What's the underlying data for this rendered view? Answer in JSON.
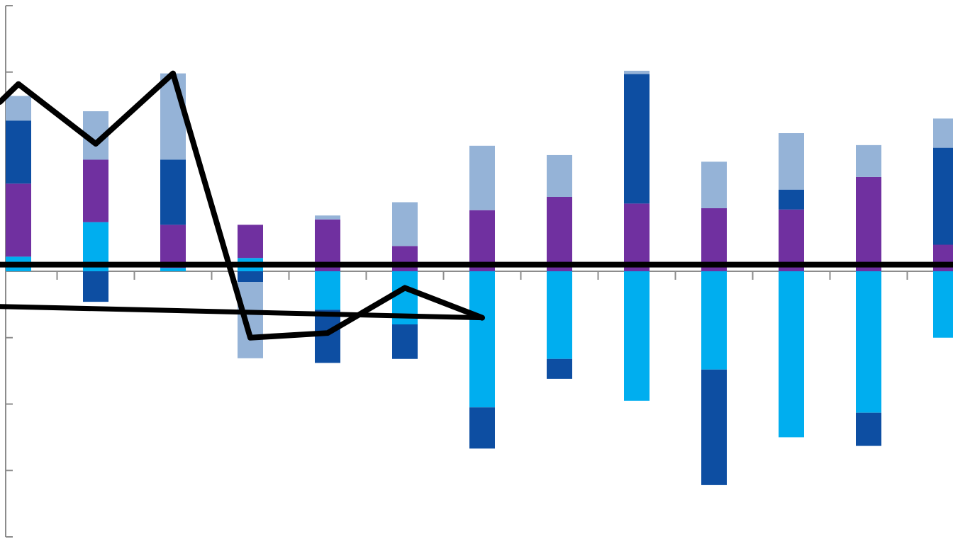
{
  "chart_data": {
    "type": "bar",
    "stacked": true,
    "title": "",
    "xlabel": "",
    "ylabel": "",
    "ylim": [
      -4,
      4
    ],
    "y_ticks": [
      -4,
      -3,
      -2,
      -1,
      0,
      1,
      2,
      3,
      4
    ],
    "categories": [
      "",
      "",
      "",
      "",
      "",
      "",
      "",
      "",
      "",
      "",
      "",
      "",
      ""
    ],
    "series": [
      {
        "color": "#00AEEF",
        "values": [
          0.22,
          0.74,
          0.05,
          0.2,
          -0.58,
          -0.8,
          -2.05,
          -1.32,
          -1.95,
          -1.48,
          -2.5,
          -2.13,
          -1.0
        ]
      },
      {
        "color": "#7030A0",
        "values": [
          1.1,
          0.94,
          0.65,
          0.5,
          0.78,
          0.38,
          0.92,
          1.12,
          1.02,
          0.95,
          0.93,
          1.42,
          0.4
        ]
      },
      {
        "color": "#0D4EA2",
        "values": [
          0.95,
          -0.46,
          0.98,
          -0.16,
          -0.8,
          -0.52,
          -0.62,
          -0.3,
          1.95,
          -1.74,
          0.3,
          -0.5,
          1.46
        ]
      },
      {
        "color": "#95B3D7",
        "values": [
          0.37,
          0.73,
          1.3,
          -1.15,
          0.06,
          0.66,
          0.97,
          0.63,
          0.05,
          0.7,
          0.85,
          0.48,
          0.44
        ]
      }
    ],
    "lines": [
      {
        "color": "#000000",
        "values": [
          2.82,
          1.92,
          2.98,
          -1.0,
          -0.93,
          -0.25,
          -0.7
        ]
      },
      {
        "color": "#000000",
        "values": [
          0.1,
          0.1,
          0.1,
          0.1,
          0.1,
          0.1,
          0.1,
          0.1,
          0.1,
          0.1,
          0.1,
          0.1,
          0.1
        ]
      },
      {
        "color": "#000000",
        "values": [
          -0.53,
          -0.7
        ]
      }
    ],
    "grid": false,
    "legend": "none"
  }
}
